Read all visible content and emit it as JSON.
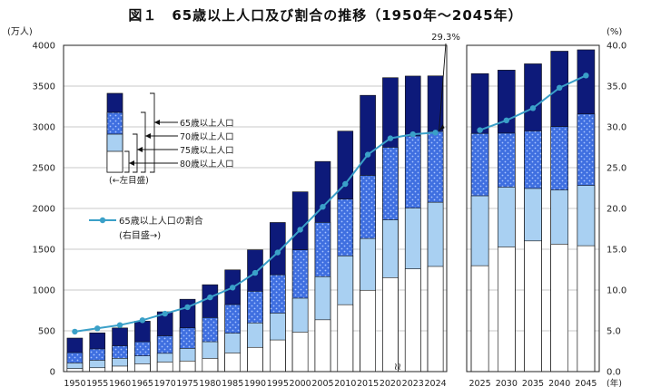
{
  "chart_data": {
    "type": "bar",
    "title": "図１　65歳以上人口及び割合の推移（1950年～2045年）",
    "ylabel_left": "(万人)",
    "ylabel_right": "(%)",
    "x_unit": "(年)",
    "ylim_left": [
      0,
      4000
    ],
    "ylim_right": [
      0,
      40
    ],
    "yticks_left": [
      "0",
      "500",
      "1000",
      "1500",
      "2000",
      "2500",
      "3000",
      "3500",
      "4000"
    ],
    "yticks_right": [
      "0.0",
      "5.0",
      "10.0",
      "15.0",
      "20.0",
      "25.0",
      "30.0",
      "35.0",
      "40.0"
    ],
    "break_mark": "≀≀",
    "panels": [
      {
        "categories": [
          "1950",
          "1955",
          "1960",
          "1965",
          "1970",
          "1975",
          "1980",
          "1985",
          "1990",
          "1995",
          "2000",
          "2005",
          "2010",
          "2015",
          "2020",
          "2023",
          "2024"
        ],
        "age80": [
          37,
          47,
          67,
          95,
          117,
          130,
          162,
          228,
          297,
          388,
          484,
          635,
          820,
          997,
          1152,
          1259,
          1289
        ],
        "age75": [
          106,
          139,
          163,
          193,
          224,
          284,
          366,
          471,
          597,
          717,
          900,
          1164,
          1419,
          1632,
          1860,
          2005,
          2076
        ],
        "age70": [
          233,
          278,
          316,
          366,
          438,
          536,
          662,
          822,
          985,
          1187,
          1492,
          1829,
          2115,
          2405,
          2750,
          2889,
          2944
        ],
        "age65": [
          411,
          475,
          535,
          618,
          733,
          887,
          1065,
          1247,
          1493,
          1828,
          2204,
          2576,
          2948,
          3387,
          3603,
          3623,
          3625
        ],
        "ratio": [
          4.9,
          5.3,
          5.7,
          6.3,
          7.1,
          7.9,
          9.1,
          10.3,
          12.1,
          14.6,
          17.4,
          20.2,
          23.0,
          26.6,
          28.6,
          29.1,
          29.3
        ]
      },
      {
        "categories": [
          "2025",
          "2030",
          "2035",
          "2040",
          "2045"
        ],
        "age80": [
          1298,
          1528,
          1602,
          1562,
          1543
        ],
        "age75": [
          2155,
          2261,
          2245,
          2227,
          2282
        ],
        "age70": [
          2920,
          2923,
          2950,
          3003,
          3158
        ],
        "age65": [
          3653,
          3696,
          3773,
          3928,
          3945
        ],
        "ratio": [
          29.6,
          30.8,
          32.3,
          34.8,
          36.3
        ]
      }
    ],
    "annotation": "29.3%",
    "legend": {
      "labels": [
        "65歳以上人口",
        "70歳以上人口",
        "75歳以上人口",
        "80歳以上人口"
      ],
      "axis_note": "(←左目盛)",
      "line_label": "65歳以上人口の割合",
      "line_axis_note": "(右目盛→)"
    },
    "colors": {
      "age65": "#0d1a7a",
      "age70": "#3f6fe0",
      "age75": "#a9d0f2",
      "age80": "#ffffff",
      "line": "#3aa0c8",
      "dots": "#a9c4ff"
    }
  }
}
